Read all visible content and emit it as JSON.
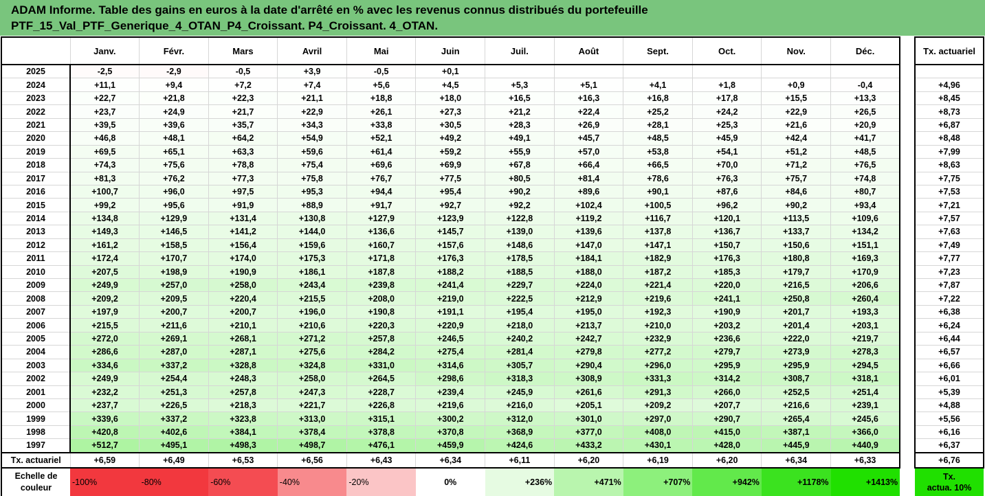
{
  "title": {
    "line1": "ADAM Informe. Table des gains en euros à la date d'arrêté en % avec les revenus connus distribués du portefeuille",
    "line2": "PTF_15_Val_PTF_Generique_4_OTAN_P4_Croissant. P4_Croissant. 4_OTAN."
  },
  "months": [
    "Janv.",
    "Févr.",
    "Mars",
    "Avril",
    "Mai",
    "Juin",
    "Juil.",
    "Août",
    "Sept.",
    "Oct.",
    "Nov.",
    "Déc."
  ],
  "side_header": "Tx. actuariel",
  "rows": [
    {
      "year": "2025",
      "vals": [
        "-2,5",
        "-2,9",
        "-0,5",
        "+3,9",
        "-0,5",
        "+0,1",
        "",
        "",
        "",
        "",
        "",
        ""
      ],
      "tx": ""
    },
    {
      "year": "2024",
      "vals": [
        "+11,1",
        "+9,4",
        "+7,2",
        "+7,4",
        "+5,6",
        "+4,5",
        "+5,3",
        "+5,1",
        "+4,1",
        "+1,8",
        "+0,9",
        "-0,4"
      ],
      "tx": "+4,96"
    },
    {
      "year": "2023",
      "vals": [
        "+22,7",
        "+21,8",
        "+22,3",
        "+21,1",
        "+18,8",
        "+18,0",
        "+16,5",
        "+16,3",
        "+16,8",
        "+17,8",
        "+15,5",
        "+13,3"
      ],
      "tx": "+8,45"
    },
    {
      "year": "2022",
      "vals": [
        "+23,7",
        "+24,9",
        "+21,7",
        "+22,9",
        "+26,1",
        "+27,3",
        "+21,2",
        "+22,4",
        "+25,2",
        "+24,2",
        "+22,9",
        "+26,5"
      ],
      "tx": "+8,73"
    },
    {
      "year": "2021",
      "vals": [
        "+39,5",
        "+39,6",
        "+35,7",
        "+34,3",
        "+33,8",
        "+30,5",
        "+28,3",
        "+26,9",
        "+28,1",
        "+25,3",
        "+21,6",
        "+20,9"
      ],
      "tx": "+6,87"
    },
    {
      "year": "2020",
      "vals": [
        "+46,8",
        "+48,1",
        "+64,2",
        "+54,9",
        "+52,1",
        "+49,2",
        "+49,1",
        "+45,7",
        "+48,5",
        "+45,9",
        "+42,4",
        "+41,7"
      ],
      "tx": "+8,48"
    },
    {
      "year": "2019",
      "vals": [
        "+69,5",
        "+65,1",
        "+63,3",
        "+59,6",
        "+61,4",
        "+59,2",
        "+55,9",
        "+57,0",
        "+53,8",
        "+54,1",
        "+51,2",
        "+48,5"
      ],
      "tx": "+7,99"
    },
    {
      "year": "2018",
      "vals": [
        "+74,3",
        "+75,6",
        "+78,8",
        "+75,4",
        "+69,6",
        "+69,9",
        "+67,8",
        "+66,4",
        "+66,5",
        "+70,0",
        "+71,2",
        "+76,5"
      ],
      "tx": "+8,63"
    },
    {
      "year": "2017",
      "vals": [
        "+81,3",
        "+76,2",
        "+77,3",
        "+75,8",
        "+76,7",
        "+77,5",
        "+80,5",
        "+81,4",
        "+78,6",
        "+76,3",
        "+75,7",
        "+74,8"
      ],
      "tx": "+7,75"
    },
    {
      "year": "2016",
      "vals": [
        "+100,7",
        "+96,0",
        "+97,5",
        "+95,3",
        "+94,4",
        "+95,4",
        "+90,2",
        "+89,6",
        "+90,1",
        "+87,6",
        "+84,6",
        "+80,7"
      ],
      "tx": "+7,53"
    },
    {
      "year": "2015",
      "vals": [
        "+99,2",
        "+95,6",
        "+91,9",
        "+88,9",
        "+91,7",
        "+92,7",
        "+92,2",
        "+102,4",
        "+100,5",
        "+96,2",
        "+90,2",
        "+93,4"
      ],
      "tx": "+7,21"
    },
    {
      "year": "2014",
      "vals": [
        "+134,8",
        "+129,9",
        "+131,4",
        "+130,8",
        "+127,9",
        "+123,9",
        "+122,8",
        "+119,2",
        "+116,7",
        "+120,1",
        "+113,5",
        "+109,6"
      ],
      "tx": "+7,57"
    },
    {
      "year": "2013",
      "vals": [
        "+149,3",
        "+146,5",
        "+141,2",
        "+144,0",
        "+136,6",
        "+145,7",
        "+139,0",
        "+139,6",
        "+137,8",
        "+136,7",
        "+133,7",
        "+134,2"
      ],
      "tx": "+7,63"
    },
    {
      "year": "2012",
      "vals": [
        "+161,2",
        "+158,5",
        "+156,4",
        "+159,6",
        "+160,7",
        "+157,6",
        "+148,6",
        "+147,0",
        "+147,1",
        "+150,7",
        "+150,6",
        "+151,1"
      ],
      "tx": "+7,49"
    },
    {
      "year": "2011",
      "vals": [
        "+172,4",
        "+170,7",
        "+174,0",
        "+175,3",
        "+171,8",
        "+176,3",
        "+178,5",
        "+184,1",
        "+182,9",
        "+176,3",
        "+180,8",
        "+169,3"
      ],
      "tx": "+7,77"
    },
    {
      "year": "2010",
      "vals": [
        "+207,5",
        "+198,9",
        "+190,9",
        "+186,1",
        "+187,8",
        "+188,2",
        "+188,5",
        "+188,0",
        "+187,2",
        "+185,3",
        "+179,7",
        "+170,9"
      ],
      "tx": "+7,23"
    },
    {
      "year": "2009",
      "vals": [
        "+249,9",
        "+257,0",
        "+258,0",
        "+243,4",
        "+239,8",
        "+241,4",
        "+229,7",
        "+224,0",
        "+221,4",
        "+220,0",
        "+216,5",
        "+206,6"
      ],
      "tx": "+7,87"
    },
    {
      "year": "2008",
      "vals": [
        "+209,2",
        "+209,5",
        "+220,4",
        "+215,5",
        "+208,0",
        "+219,0",
        "+222,5",
        "+212,9",
        "+219,6",
        "+241,1",
        "+250,8",
        "+260,4"
      ],
      "tx": "+7,22"
    },
    {
      "year": "2007",
      "vals": [
        "+197,9",
        "+200,7",
        "+200,7",
        "+196,0",
        "+190,8",
        "+191,1",
        "+195,4",
        "+195,0",
        "+192,3",
        "+190,9",
        "+201,7",
        "+193,3"
      ],
      "tx": "+6,38"
    },
    {
      "year": "2006",
      "vals": [
        "+215,5",
        "+211,6",
        "+210,1",
        "+210,6",
        "+220,3",
        "+220,9",
        "+218,0",
        "+213,7",
        "+210,0",
        "+203,2",
        "+201,4",
        "+203,1"
      ],
      "tx": "+6,24"
    },
    {
      "year": "2005",
      "vals": [
        "+272,0",
        "+269,1",
        "+268,1",
        "+271,2",
        "+257,8",
        "+246,5",
        "+240,2",
        "+242,7",
        "+232,9",
        "+236,6",
        "+222,0",
        "+219,7"
      ],
      "tx": "+6,44"
    },
    {
      "year": "2004",
      "vals": [
        "+286,6",
        "+287,0",
        "+287,1",
        "+275,6",
        "+284,2",
        "+275,4",
        "+281,4",
        "+279,8",
        "+277,2",
        "+279,7",
        "+273,9",
        "+278,3"
      ],
      "tx": "+6,57"
    },
    {
      "year": "2003",
      "vals": [
        "+334,6",
        "+337,2",
        "+328,8",
        "+324,8",
        "+331,0",
        "+314,6",
        "+305,7",
        "+290,4",
        "+296,0",
        "+295,9",
        "+295,9",
        "+294,5"
      ],
      "tx": "+6,66"
    },
    {
      "year": "2002",
      "vals": [
        "+249,9",
        "+254,4",
        "+248,3",
        "+258,0",
        "+264,5",
        "+298,6",
        "+318,3",
        "+308,9",
        "+331,3",
        "+314,2",
        "+308,7",
        "+318,1"
      ],
      "tx": "+6,01"
    },
    {
      "year": "2001",
      "vals": [
        "+232,2",
        "+251,3",
        "+257,8",
        "+247,3",
        "+228,7",
        "+239,4",
        "+245,9",
        "+261,6",
        "+291,3",
        "+266,0",
        "+252,5",
        "+251,4"
      ],
      "tx": "+5,39"
    },
    {
      "year": "2000",
      "vals": [
        "+237,7",
        "+226,5",
        "+218,3",
        "+221,7",
        "+226,8",
        "+219,6",
        "+216,0",
        "+205,1",
        "+209,2",
        "+207,7",
        "+216,6",
        "+239,1"
      ],
      "tx": "+4,88"
    },
    {
      "year": "1999",
      "vals": [
        "+339,6",
        "+337,2",
        "+323,8",
        "+313,0",
        "+315,1",
        "+300,2",
        "+312,0",
        "+301,0",
        "+297,0",
        "+290,7",
        "+265,4",
        "+245,6"
      ],
      "tx": "+5,56"
    },
    {
      "year": "1998",
      "vals": [
        "+420,8",
        "+402,6",
        "+384,1",
        "+378,4",
        "+378,8",
        "+370,8",
        "+368,9",
        "+377,0",
        "+408,0",
        "+415,0",
        "+387,1",
        "+366,0"
      ],
      "tx": "+6,16"
    },
    {
      "year": "1997",
      "vals": [
        "+512,7",
        "+495,1",
        "+498,3",
        "+498,7",
        "+476,1",
        "+459,9",
        "+424,6",
        "+433,2",
        "+430,1",
        "+428,0",
        "+445,9",
        "+440,9"
      ],
      "tx": "+6,37"
    }
  ],
  "tx_row": {
    "label": "Tx. actuariel",
    "vals": [
      "+6,59",
      "+6,49",
      "+6,53",
      "+6,56",
      "+6,43",
      "+6,34",
      "+6,11",
      "+6,20",
      "+6,19",
      "+6,20",
      "+6,34",
      "+6,33"
    ],
    "total": "+6,76"
  },
  "scale": {
    "label_line1": "Echelle de",
    "label_line2": "couleur",
    "items": [
      {
        "label": "-100%",
        "color": "#f2383e"
      },
      {
        "label": "-80%",
        "color": "#f2383e"
      },
      {
        "label": "-60%",
        "color": "#f44c52"
      },
      {
        "label": "-40%",
        "color": "#f88a8d"
      },
      {
        "label": "-20%",
        "color": "#fbc5c6"
      },
      {
        "label": "0%",
        "color": "#ffffff"
      },
      {
        "label": "+236%",
        "color": "#e6fbe2"
      },
      {
        "label": "+471%",
        "color": "#b9f5ae"
      },
      {
        "label": "+707%",
        "color": "#8df07c"
      },
      {
        "label": "+942%",
        "color": "#62e94b"
      },
      {
        "label": "+1178%",
        "color": "#3be21f"
      },
      {
        "label": "+1413%",
        "color": "#20e000"
      }
    ],
    "side_line1": "Tx.",
    "side_line2": "actua. 10%",
    "side_color": "#20e000"
  }
}
